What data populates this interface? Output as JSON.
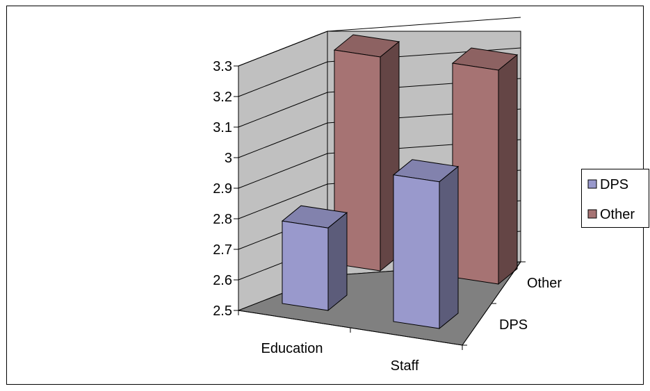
{
  "chart_data": {
    "type": "bar",
    "title": "",
    "xlabel": "",
    "ylabel": "",
    "categories": [
      "Education",
      "Staff"
    ],
    "depth_categories": [
      "DPS",
      "Other"
    ],
    "ylim": [
      2.5,
      3.3
    ],
    "yticks": [
      "2.5",
      "2.6",
      "2.7",
      "2.8",
      "2.9",
      "3",
      "3.1",
      "3.2",
      "3.3"
    ],
    "grid": true,
    "legend_position": "right",
    "series": [
      {
        "name": "DPS",
        "color": "#9999cc",
        "values": [
          2.77,
          2.98
        ]
      },
      {
        "name": "Other",
        "color": "#a67373",
        "values": [
          3.2,
          3.2
        ]
      }
    ]
  }
}
